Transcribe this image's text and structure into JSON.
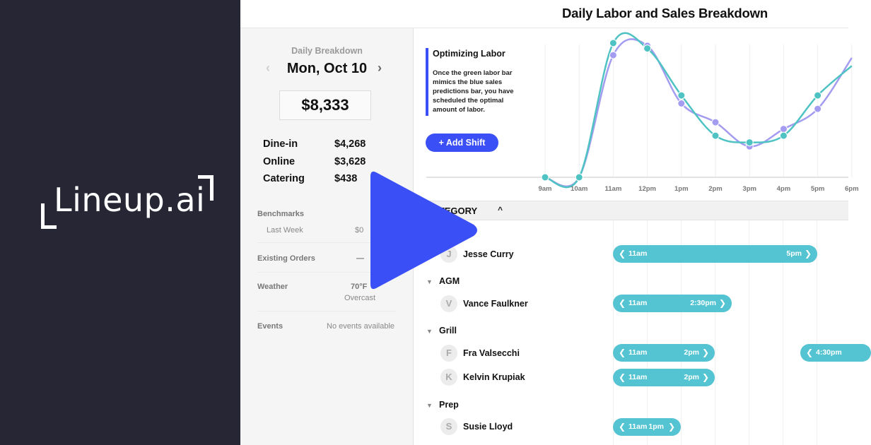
{
  "brand": {
    "logo_text": "Lineup.ai"
  },
  "sidebar": {
    "section_label": "Daily Breakdown",
    "date": "Mon, Oct 10",
    "prev_icon": "chevron-left-icon",
    "next_icon": "chevron-right-icon",
    "total_sales": "$8,333",
    "sales": [
      {
        "label": "Dine-in",
        "value": "$4,268"
      },
      {
        "label": "Online",
        "value": "$3,628"
      },
      {
        "label": "Catering",
        "value": "$438"
      }
    ],
    "benchmarks": {
      "label": "Benchmarks",
      "last_week_label": "Last Week",
      "last_week_value": "$0"
    },
    "existing_orders": {
      "label": "Existing Orders",
      "value": "—"
    },
    "weather": {
      "label": "Weather",
      "temp": "70°F",
      "condition": "Overcast"
    },
    "events": {
      "label": "Events",
      "value": "No events available"
    }
  },
  "main": {
    "title": "Daily Labor and Sales Breakdown",
    "callout": {
      "title": "Optimizing Labor",
      "body": "Once the green labor bar mimics the blue sales predictions bar, you have scheduled the optimal amount of labor."
    },
    "add_shift_label": "+ Add Shift",
    "category_header": "CATEGORY",
    "category_caret": "^",
    "groups": [
      {
        "name": "",
        "employees": [
          {
            "initial": "J",
            "name": "Jesse Curry",
            "shifts": [
              {
                "start": "11am",
                "end": "5pm"
              }
            ]
          }
        ]
      },
      {
        "name": "AGM",
        "employees": [
          {
            "initial": "V",
            "name": "Vance Faulkner",
            "shifts": [
              {
                "start": "11am",
                "end": "2:30pm"
              }
            ]
          }
        ]
      },
      {
        "name": "Grill",
        "employees": [
          {
            "initial": "F",
            "name": "Fra Valsecchi",
            "shifts": [
              {
                "start": "11am",
                "end": "2pm"
              },
              {
                "start": "4:30pm",
                "end": ""
              }
            ]
          },
          {
            "initial": "K",
            "name": "Kelvin Krupiak",
            "shifts": [
              {
                "start": "11am",
                "end": "2pm"
              }
            ]
          }
        ]
      },
      {
        "name": "Prep",
        "employees": [
          {
            "initial": "S",
            "name": "Susie Lloyd",
            "shifts": [
              {
                "start": "11am",
                "end": "1pm"
              }
            ]
          }
        ]
      }
    ]
  },
  "chart_data": {
    "type": "line",
    "title": "",
    "xlabel": "",
    "ylabel": "",
    "x": [
      "9am",
      "10am",
      "11am",
      "12pm",
      "1pm",
      "2pm",
      "3pm",
      "4pm",
      "5pm",
      "6pm"
    ],
    "series": [
      {
        "name": "Labor (green)",
        "color": "#4fc3c3",
        "values": [
          0,
          0,
          100,
          96,
          61,
          31,
          26,
          31,
          61,
          83
        ]
      },
      {
        "name": "Sales predictions (blue)",
        "color": "#a49cf0",
        "values": [
          0,
          0,
          91,
          98,
          55,
          41,
          23,
          36,
          51,
          89
        ]
      }
    ],
    "ylim": [
      0,
      100
    ],
    "grid": true,
    "legend": "none"
  },
  "play_button": {
    "icon": "play-icon",
    "color": "#3a4ff5"
  }
}
